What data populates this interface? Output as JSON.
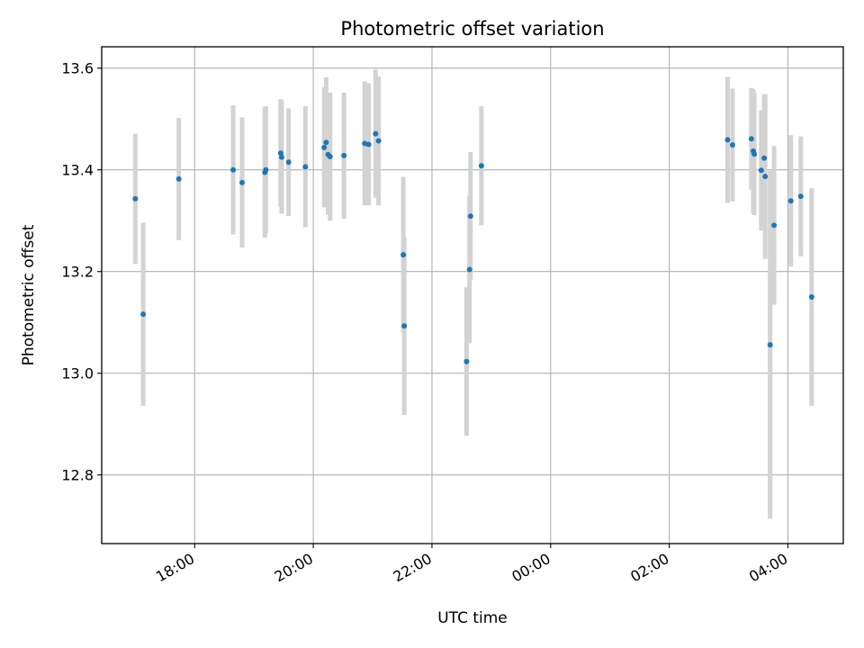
{
  "chart_data": {
    "type": "scatter",
    "title": "Photometric offset variation",
    "xlabel": "UTC time",
    "ylabel": "Photometric offset",
    "x_is_time": true,
    "xlim": [
      "16:26",
      "04:56"
    ],
    "ylim": [
      12.665,
      13.642
    ],
    "xticks": [
      "18:00",
      "20:00",
      "22:00",
      "00:00",
      "02:00",
      "04:00"
    ],
    "yticks": [
      "12.8",
      "13.0",
      "13.2",
      "13.4",
      "13.6"
    ],
    "grid": true,
    "marker_color": "#1f77b4",
    "errorbar_color": "#d3d3d3",
    "points": [
      {
        "t": "17:00",
        "y": 13.343,
        "err": 0.128
      },
      {
        "t": "17:08",
        "y": 13.116,
        "err": 0.18
      },
      {
        "t": "17:44",
        "y": 13.382,
        "err": 0.12
      },
      {
        "t": "18:39",
        "y": 13.4,
        "err": 0.127
      },
      {
        "t": "18:48",
        "y": 13.375,
        "err": 0.128
      },
      {
        "t": "19:11",
        "y": 13.395,
        "err": 0.128
      },
      {
        "t": "19:12",
        "y": 13.4,
        "err": 0.125
      },
      {
        "t": "19:27",
        "y": 13.433,
        "err": 0.106
      },
      {
        "t": "19:28",
        "y": 13.425,
        "err": 0.111
      },
      {
        "t": "19:35",
        "y": 13.415,
        "err": 0.106
      },
      {
        "t": "19:52",
        "y": 13.406,
        "err": 0.119
      },
      {
        "t": "20:11",
        "y": 13.444,
        "err": 0.118
      },
      {
        "t": "20:13",
        "y": 13.454,
        "err": 0.128
      },
      {
        "t": "20:15",
        "y": 13.43,
        "err": 0.118
      },
      {
        "t": "20:17",
        "y": 13.426,
        "err": 0.126
      },
      {
        "t": "20:31",
        "y": 13.428,
        "err": 0.124
      },
      {
        "t": "20:52",
        "y": 13.452,
        "err": 0.122
      },
      {
        "t": "20:56",
        "y": 13.45,
        "err": 0.12
      },
      {
        "t": "21:03",
        "y": 13.471,
        "err": 0.126
      },
      {
        "t": "21:06",
        "y": 13.457,
        "err": 0.127
      },
      {
        "t": "21:31",
        "y": 13.233,
        "err": 0.153
      },
      {
        "t": "21:32",
        "y": 13.093,
        "err": 0.175
      },
      {
        "t": "22:35",
        "y": 13.023,
        "err": 0.146
      },
      {
        "t": "22:38",
        "y": 13.204,
        "err": 0.145
      },
      {
        "t": "22:39",
        "y": 13.309,
        "err": 0.126
      },
      {
        "t": "22:50",
        "y": 13.408,
        "err": 0.117
      },
      {
        "t": "02:59",
        "y": 13.459,
        "err": 0.124
      },
      {
        "t": "03:04",
        "y": 13.449,
        "err": 0.111
      },
      {
        "t": "03:23",
        "y": 13.461,
        "err": 0.1
      },
      {
        "t": "03:25",
        "y": 13.437,
        "err": 0.122
      },
      {
        "t": "03:26",
        "y": 13.431,
        "err": 0.12
      },
      {
        "t": "03:33",
        "y": 13.399,
        "err": 0.118
      },
      {
        "t": "03:36",
        "y": 13.423,
        "err": 0.126
      },
      {
        "t": "03:37",
        "y": 13.387,
        "err": 0.162
      },
      {
        "t": "03:42",
        "y": 13.056,
        "err": 0.342
      },
      {
        "t": "03:46",
        "y": 13.291,
        "err": 0.156
      },
      {
        "t": "04:03",
        "y": 13.339,
        "err": 0.129
      },
      {
        "t": "04:13",
        "y": 13.348,
        "err": 0.118
      },
      {
        "t": "04:24",
        "y": 13.15,
        "err": 0.214
      }
    ]
  }
}
